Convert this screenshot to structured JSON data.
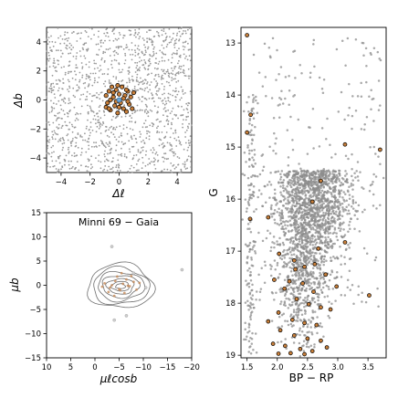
{
  "chart_data": [
    {
      "type": "scatter",
      "xlabel": "Δℓ",
      "ylabel": "Δb",
      "xlim": [
        -5,
        5
      ],
      "ylim": [
        -5,
        5
      ],
      "xticks": [
        "−4",
        "−2",
        "0",
        "2",
        "4"
      ],
      "xtick_values": [
        -4,
        -2,
        0,
        2,
        4
      ],
      "yticks": [
        "−4",
        "−2",
        "0",
        "2",
        "4"
      ],
      "ytick_values": [
        -4,
        -2,
        0,
        2,
        4
      ],
      "field_color": "#9a9a9a",
      "member_color": "#c87f3a",
      "center_color": "#6aa6d8",
      "members": [
        [
          -0.9,
          0.3
        ],
        [
          -0.8,
          -0.2
        ],
        [
          -0.7,
          0.6
        ],
        [
          -0.6,
          -0.7
        ],
        [
          -0.5,
          0.9
        ],
        [
          -0.4,
          0.2
        ],
        [
          -0.3,
          -0.4
        ],
        [
          -0.2,
          0.7
        ],
        [
          -0.1,
          -0.9
        ],
        [
          0.0,
          0.4
        ],
        [
          0.1,
          -0.2
        ],
        [
          0.2,
          0.9
        ],
        [
          0.3,
          -0.6
        ],
        [
          0.4,
          0.3
        ],
        [
          0.5,
          -0.8
        ],
        [
          0.6,
          0.6
        ],
        [
          0.7,
          -0.3
        ],
        [
          0.8,
          0.2
        ],
        [
          0.9,
          -0.6
        ],
        [
          -0.6,
          0.0
        ],
        [
          0.3,
          0.1
        ],
        [
          -0.2,
          -0.1
        ],
        [
          0.6,
          -0.1
        ],
        [
          -0.4,
          0.5
        ],
        [
          0.0,
          -0.5
        ],
        [
          -0.9,
          -0.5
        ],
        [
          1.0,
          0.5
        ],
        [
          -0.1,
          1.0
        ],
        [
          0.5,
          0.7
        ],
        [
          -0.7,
          -0.6
        ]
      ]
    },
    {
      "type": "scatter",
      "title": "Minni 69  −  Gaia",
      "xlabel": "μℓcosb",
      "ylabel": "μb",
      "xlim": [
        10,
        -20
      ],
      "ylim": [
        -15,
        15
      ],
      "xticks": [
        "10",
        "5",
        "0",
        "−5",
        "−10",
        "−15",
        "−20"
      ],
      "xtick_values": [
        10,
        5,
        0,
        -5,
        -10,
        -15,
        -20
      ],
      "yticks": [
        "−15",
        "−10",
        "−5",
        "0",
        "5",
        "10",
        "15"
      ],
      "ytick_values": [
        -15,
        -10,
        -5,
        0,
        5,
        10,
        15
      ],
      "contour_center": [
        -5.3,
        -0.2
      ],
      "contour_levels": [
        [
          6.8,
          4.6
        ],
        [
          5.8,
          3.8
        ],
        [
          4.8,
          3.0
        ],
        [
          3.8,
          2.3
        ],
        [
          2.8,
          1.6
        ],
        [
          1.8,
          1.0
        ],
        [
          1.0,
          0.5
        ]
      ],
      "outliers": [
        [
          -3.5,
          8.0
        ],
        [
          -8.0,
          2.5
        ],
        [
          -10.5,
          -0.5
        ],
        [
          -18.0,
          3.2
        ],
        [
          -6.5,
          -6.3
        ],
        [
          -4.0,
          -7.2
        ]
      ],
      "members": [
        [
          -2.0,
          0.4
        ],
        [
          -3.1,
          -0.5
        ],
        [
          -4.2,
          0.9
        ],
        [
          -5.0,
          -0.8
        ],
        [
          -5.8,
          0.3
        ],
        [
          -6.5,
          1.2
        ],
        [
          -7.2,
          -0.2
        ],
        [
          -8.0,
          0.7
        ],
        [
          -4.6,
          1.8
        ],
        [
          -6.1,
          -1.6
        ],
        [
          -3.5,
          0.0
        ],
        [
          -7.5,
          1.9
        ],
        [
          -2.8,
          -1.4
        ],
        [
          -8.6,
          -0.9
        ],
        [
          -5.5,
          2.5
        ],
        [
          -4.0,
          -2.2
        ],
        [
          -6.8,
          -0.1
        ],
        [
          -9.2,
          0.5
        ],
        [
          -1.5,
          -0.3
        ],
        [
          -5.2,
          -1.0
        ]
      ]
    },
    {
      "type": "scatter",
      "xlabel": "BP − RP",
      "ylabel": "G",
      "xlim": [
        1.4,
        3.8
      ],
      "ylim": [
        19.05,
        12.7
      ],
      "xticks": [
        "1.5",
        "2.0",
        "2.5",
        "3.0",
        "3.5"
      ],
      "xtick_values": [
        1.5,
        2.0,
        2.5,
        3.0,
        3.5
      ],
      "yticks": [
        "13",
        "14",
        "15",
        "16",
        "17",
        "18",
        "19"
      ],
      "ytick_values": [
        13,
        14,
        15,
        16,
        17,
        18,
        19
      ],
      "members": [
        [
          1.5,
          12.85
        ],
        [
          1.56,
          14.38
        ],
        [
          1.5,
          14.72
        ],
        [
          1.55,
          16.38
        ],
        [
          1.85,
          16.35
        ],
        [
          3.12,
          14.95
        ],
        [
          3.7,
          15.05
        ],
        [
          2.72,
          15.65
        ],
        [
          2.58,
          16.05
        ],
        [
          3.12,
          16.83
        ],
        [
          2.03,
          17.05
        ],
        [
          2.28,
          17.18
        ],
        [
          2.45,
          17.3
        ],
        [
          2.62,
          17.25
        ],
        [
          2.8,
          17.45
        ],
        [
          2.98,
          17.68
        ],
        [
          3.52,
          17.85
        ],
        [
          2.2,
          17.58
        ],
        [
          2.42,
          17.62
        ],
        [
          2.6,
          17.78
        ],
        [
          1.95,
          17.55
        ],
        [
          2.12,
          17.72
        ],
        [
          2.32,
          17.92
        ],
        [
          2.52,
          18.02
        ],
        [
          2.72,
          18.08
        ],
        [
          2.88,
          18.12
        ],
        [
          2.02,
          18.18
        ],
        [
          2.25,
          18.32
        ],
        [
          2.45,
          18.38
        ],
        [
          2.65,
          18.42
        ],
        [
          1.85,
          18.35
        ],
        [
          2.05,
          18.52
        ],
        [
          2.28,
          18.62
        ],
        [
          2.5,
          18.68
        ],
        [
          2.72,
          18.72
        ],
        [
          1.93,
          18.78
        ],
        [
          2.13,
          18.82
        ],
        [
          2.38,
          18.88
        ],
        [
          2.58,
          18.92
        ],
        [
          2.82,
          18.85
        ],
        [
          2.02,
          18.97
        ],
        [
          2.22,
          18.96
        ],
        [
          2.45,
          18.98
        ],
        [
          2.3,
          17.35
        ],
        [
          2.68,
          16.95
        ]
      ]
    }
  ]
}
